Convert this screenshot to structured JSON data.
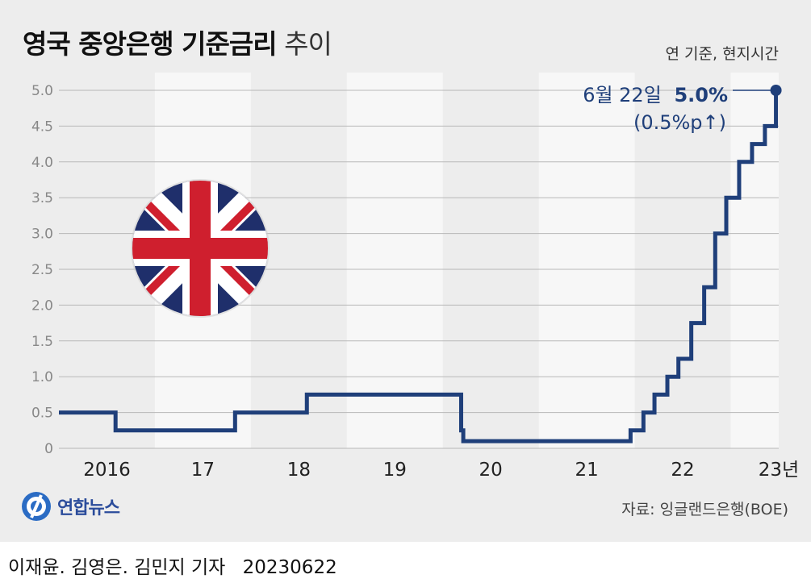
{
  "title": {
    "bold": "영국 중앙은행 기준금리",
    "light": "추이"
  },
  "note": "연 기준, 현지시간",
  "source": "자료: 잉글랜드은행(BOE)",
  "logo_text": "연합뉴스",
  "byline": {
    "reporters": "이재윤. 김영은. 김민지 기자",
    "date": "20230622"
  },
  "colors": {
    "line": "#1f3f7a",
    "background": "#ededed",
    "band": "#f7f7f7",
    "grid": "#b8b8b8",
    "flag_blue": "#1f2f6b",
    "flag_red": "#cf1f2e"
  },
  "annotation": {
    "date": "6월 22일",
    "value": "5.0%",
    "change": "(0.5%p↑)"
  },
  "chart_data": {
    "type": "line",
    "step": true,
    "title": "영국 중앙은행 기준금리 추이",
    "xlabel": "",
    "ylabel": "",
    "ylim": [
      0,
      5.0
    ],
    "yticks": [
      "0",
      "0.5",
      "1.0",
      "1.5",
      "2.0",
      "2.5",
      "3.0",
      "3.5",
      "4.0",
      "4.5",
      "5.0"
    ],
    "xticks": [
      "2016",
      "17",
      "18",
      "19",
      "20",
      "21",
      "22",
      "23년"
    ],
    "grid": true,
    "series": [
      {
        "x": [
          "2016-01-01",
          "2016-08-04",
          "2017-11-02",
          "2018-08-02",
          "2020-03-11",
          "2020-03-19",
          "2021-12-16",
          "2022-02-03",
          "2022-03-17",
          "2022-05-05",
          "2022-06-16",
          "2022-08-04",
          "2022-09-22",
          "2022-11-03",
          "2022-12-15",
          "2023-02-02",
          "2023-03-23",
          "2023-05-11",
          "2023-06-22"
        ],
        "values": [
          0.5,
          0.25,
          0.5,
          0.75,
          0.25,
          0.1,
          0.25,
          0.5,
          0.75,
          1.0,
          1.25,
          1.75,
          2.25,
          3.0,
          3.5,
          4.0,
          4.25,
          4.5,
          5.0
        ]
      }
    ]
  }
}
